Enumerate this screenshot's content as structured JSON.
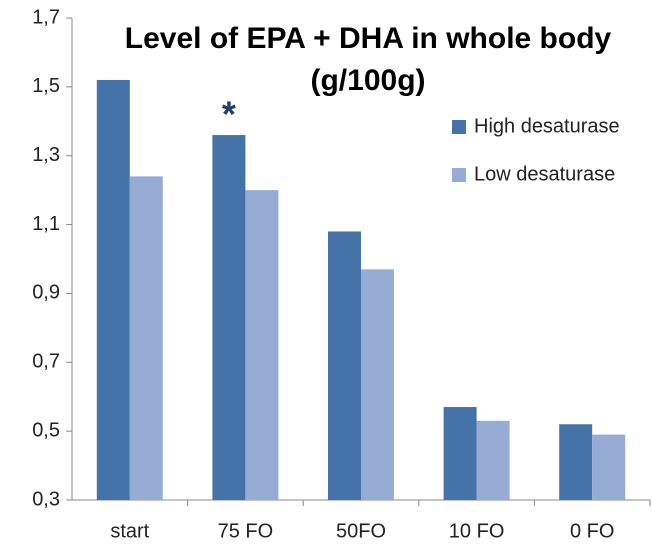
{
  "chart_data": {
    "type": "bar",
    "title": "Level of EPA + DHA in whole body",
    "subtitle": "(g/100g)",
    "annotation": "*",
    "categories": [
      "start",
      "75 FO",
      "50FO",
      "10 FO",
      "0 FO"
    ],
    "series": [
      {
        "name": "High desaturase",
        "color": "#4673a7",
        "values": [
          1.52,
          1.36,
          1.08,
          0.57,
          0.52
        ]
      },
      {
        "name": "Low desaturase",
        "color": "#97acd4",
        "values": [
          1.24,
          1.2,
          0.97,
          0.53,
          0.49
        ]
      }
    ],
    "ylim": [
      0.3,
      1.7
    ],
    "yticks": [
      {
        "value": 0.3,
        "label": "0,3"
      },
      {
        "value": 0.5,
        "label": "0,5"
      },
      {
        "value": 0.7,
        "label": "0,7"
      },
      {
        "value": 0.9,
        "label": "0,9"
      },
      {
        "value": 1.1,
        "label": "1,1"
      },
      {
        "value": 1.3,
        "label": "1,3"
      },
      {
        "value": 1.5,
        "label": "1,5"
      },
      {
        "value": 1.7,
        "label": "1,7"
      }
    ],
    "grid": false,
    "legend": "right"
  }
}
